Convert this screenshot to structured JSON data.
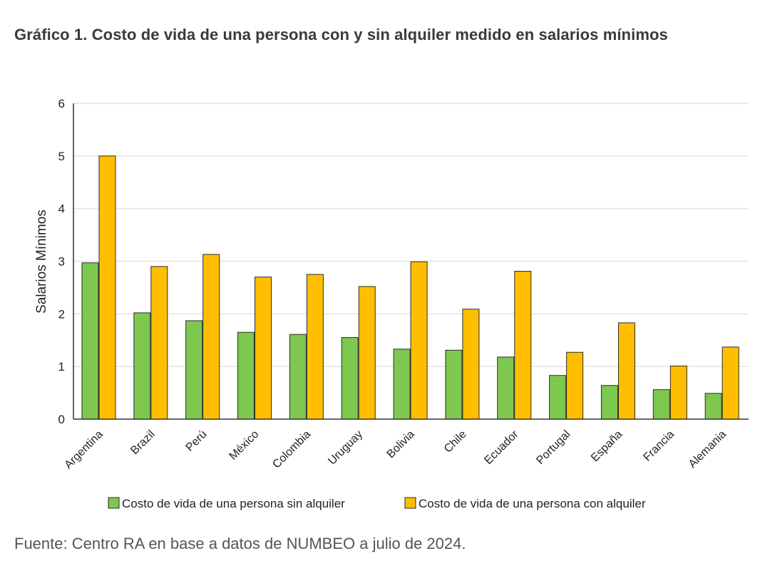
{
  "title": "Gráfico 1. Costo de vida de una persona con y sin alquiler medido en salarios mínimos",
  "source": "Fuente: Centro RA en base a datos de NUMBEO a julio de 2024.",
  "chart_data": {
    "type": "bar",
    "title": "Gráfico 1. Costo de vida de una persona con y sin alquiler medido en salarios mínimos",
    "xlabel": "",
    "ylabel": "Salarios Mínimos",
    "ylim": [
      0,
      6
    ],
    "yticks": [
      "0",
      "1",
      "2",
      "3",
      "4",
      "5",
      "6"
    ],
    "grid": true,
    "legend": "bottom",
    "categories": [
      "Argentina",
      "Brazil",
      "Perú",
      "México",
      "Colombia",
      "Uruguay",
      "Bolivia",
      "Chile",
      "Ecuador",
      "Portugal",
      "España",
      "Francia",
      "Alemania"
    ],
    "series": [
      {
        "name": "Costo de vida de una persona sin alquiler",
        "color": "#7ec850",
        "values": [
          2.97,
          2.02,
          1.87,
          1.65,
          1.61,
          1.55,
          1.33,
          1.31,
          1.18,
          0.83,
          0.64,
          0.56,
          0.49
        ]
      },
      {
        "name": "Costo de vida de una persona con alquiler",
        "color": "#ffbf00",
        "values": [
          5.0,
          2.9,
          3.13,
          2.7,
          2.75,
          2.52,
          2.99,
          2.09,
          2.81,
          1.27,
          1.83,
          1.01,
          1.37
        ]
      }
    ]
  }
}
